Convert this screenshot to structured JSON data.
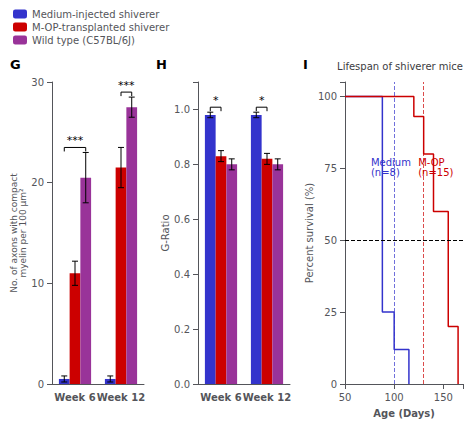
{
  "chart_data": [
    {
      "type": "bar",
      "panel_label": "G",
      "ylabel": "No. of axons with compact\nmyelin per 100 μm²",
      "categories": [
        "Week 6",
        "Week 12"
      ],
      "series": [
        {
          "name": "Medium-injected shiverer",
          "color": "#3333CC",
          "values": [
            0.5,
            0.5
          ],
          "errors": [
            0.3,
            0.3
          ]
        },
        {
          "name": "M-OP-transplanted shiverer",
          "color": "#CC0000",
          "values": [
            11.0,
            21.5
          ],
          "errors": [
            1.2,
            2.0
          ]
        },
        {
          "name": "Wild type (C57BL/6J)",
          "color": "#993399",
          "values": [
            20.5,
            27.5
          ],
          "errors": [
            2.5,
            1.0
          ]
        }
      ],
      "ylim": [
        0,
        30
      ],
      "yticks": [
        0,
        10,
        20,
        30
      ],
      "grid": false,
      "legend": "top",
      "annotations": [
        {
          "text": "***",
          "category": "Week 6",
          "between": [
            "Medium-injected shiverer",
            "Wild type (C57BL/6J)"
          ]
        },
        {
          "text": "***",
          "category": "Week 12",
          "between": [
            "M-OP-transplanted shiverer",
            "Wild type (C57BL/6J)"
          ]
        }
      ]
    },
    {
      "type": "bar",
      "panel_label": "H",
      "ylabel": "G-Ratio",
      "categories": [
        "Week 6",
        "Week 12"
      ],
      "series": [
        {
          "name": "Medium-injected shiverer",
          "color": "#3333CC",
          "values": [
            0.98,
            0.98
          ],
          "errors": [
            0.01,
            0.01
          ]
        },
        {
          "name": "M-OP-transplanted shiverer",
          "color": "#CC0000",
          "values": [
            0.83,
            0.82
          ],
          "errors": [
            0.02,
            0.02
          ]
        },
        {
          "name": "Wild type (C57BL/6J)",
          "color": "#993399",
          "values": [
            0.8,
            0.8
          ],
          "errors": [
            0.02,
            0.02
          ]
        }
      ],
      "ylim": [
        0.0,
        1.1
      ],
      "yticks": [
        {
          "value": 0.0,
          "label": "0.0"
        },
        0.2,
        0.4,
        0.6,
        0.8,
        {
          "value": 1.0,
          "label": "1.0"
        }
      ],
      "grid": false,
      "annotations": [
        {
          "text": "*",
          "category": "Week 6",
          "between": [
            "Medium-injected shiverer",
            "M-OP-transplanted shiverer"
          ]
        },
        {
          "text": "*",
          "category": "Week 12",
          "between": [
            "Medium-injected shiverer",
            "M-OP-transplanted shiverer"
          ]
        }
      ]
    },
    {
      "type": "step",
      "panel_label": "I",
      "title": "Lifespan of shiverer mice",
      "xlabel": "Age (Days)",
      "ylabel": "Percent survival (%)",
      "series": [
        {
          "name": "Medium\n(n=8)",
          "color": "#3333CC",
          "x": [
            50,
            88,
            88,
            100,
            100,
            115
          ],
          "values": [
            100,
            100,
            25,
            25,
            12,
            0
          ]
        },
        {
          "name": "M-OP\n(n=15)",
          "color": "#CC0000",
          "x": [
            50,
            120,
            120,
            130,
            130,
            140,
            140,
            155,
            155,
            165
          ],
          "values": [
            100,
            100,
            93,
            93,
            80,
            80,
            60,
            60,
            20,
            0
          ]
        }
      ],
      "reference_lines": [
        {
          "axis": "y",
          "value": 50,
          "color": "#000000"
        },
        {
          "axis": "x",
          "value": 100,
          "color": "#3333CC"
        },
        {
          "axis": "x",
          "value": 130,
          "color": "#CC0000"
        }
      ],
      "xlim": [
        50,
        170
      ],
      "xticks": [
        50,
        100,
        150
      ],
      "ylim": [
        0,
        105
      ],
      "yticks": [
        0,
        25,
        50,
        75,
        100
      ],
      "grid": false
    }
  ]
}
